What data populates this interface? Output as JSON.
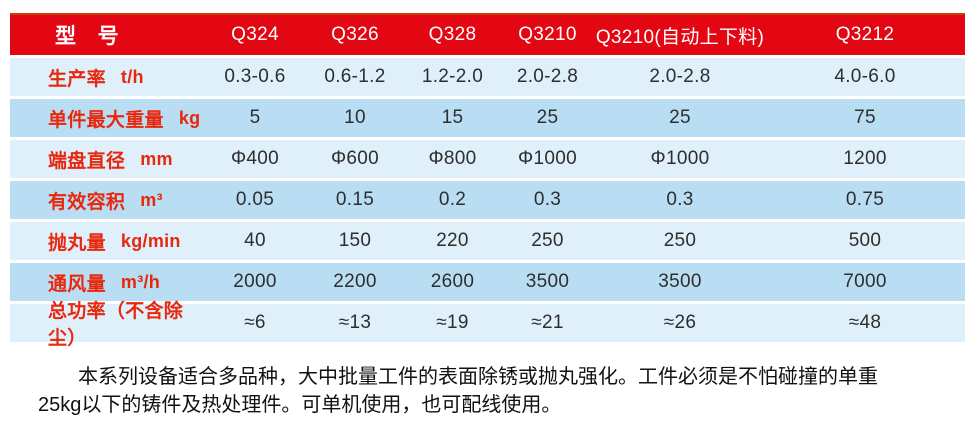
{
  "table": {
    "header": {
      "label": "型　号",
      "models": [
        "Q324",
        "Q326",
        "Q328",
        "Q3210",
        "Q3210(自动上下料)",
        "Q3212"
      ]
    },
    "rows": [
      {
        "name": "生产率",
        "unit": "t/h",
        "values": [
          "0.3-0.6",
          "0.6-1.2",
          "1.2-2.0",
          "2.0-2.8",
          "2.0-2.8",
          "4.0-6.0"
        ]
      },
      {
        "name": "单件最大重量",
        "unit": "kg",
        "values": [
          "5",
          "10",
          "15",
          "25",
          "25",
          "75"
        ]
      },
      {
        "name": "端盘直径",
        "unit": "mm",
        "values": [
          "Φ400",
          "Φ600",
          "Φ800",
          "Φ1000",
          "Φ1000",
          "1200"
        ]
      },
      {
        "name": "有效容积",
        "unit": "m³",
        "values": [
          "0.05",
          "0.15",
          "0.2",
          "0.3",
          "0.3",
          "0.75"
        ]
      },
      {
        "name": "抛丸量",
        "unit": "kg/min",
        "values": [
          "40",
          "150",
          "220",
          "250",
          "250",
          "500"
        ]
      },
      {
        "name": "通风量",
        "unit": "m³/h",
        "values": [
          "2000",
          "2200",
          "2600",
          "3500",
          "3500",
          "7000"
        ]
      },
      {
        "name": "总功率（不含除尘）",
        "unit": "",
        "values": [
          "≈6",
          "≈13",
          "≈19",
          "≈21",
          "≈26",
          "≈48"
        ]
      }
    ]
  },
  "description": {
    "line1": "本系列设备适合多品种，大中批量工件的表面除锈或抛丸强化。工件必须是不怕碰撞的单重",
    "line2": "25kg以下的铸件及热处理件。可单机使用，也可配线使用。"
  },
  "colors": {
    "header_bg": "#e30713",
    "header_border_top": "#c6410f",
    "row_light": "#dff0fb",
    "row_dark": "#b9def3",
    "label_red": "#e8270d",
    "value_text": "#2e2e2e"
  }
}
